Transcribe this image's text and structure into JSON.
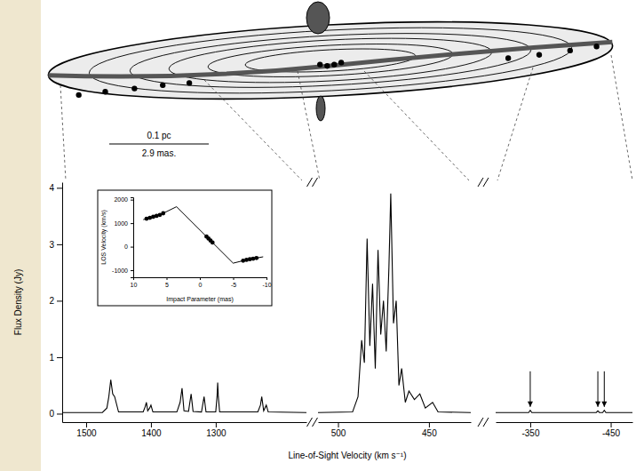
{
  "chart_data": [
    {
      "type": "line",
      "x_label": "Line-of-Sight Velocity (km s⁻¹)",
      "y_label": "Flux Density (Jy)",
      "ylim": [
        -0.15,
        4.1
      ],
      "yticks": [
        0,
        1,
        2,
        3,
        4
      ],
      "color": "#000000",
      "panels": [
        {
          "xlim": [
            1537,
            1160
          ],
          "xticks": [
            1500,
            1400,
            1300
          ],
          "x": [
            1537,
            1475,
            1468,
            1465,
            1462,
            1459,
            1456,
            1450,
            1412,
            1409,
            1407,
            1405,
            1402,
            1400,
            1397,
            1360,
            1355,
            1352,
            1349,
            1342,
            1338,
            1335,
            1322,
            1318,
            1315,
            1300,
            1298,
            1297,
            1296,
            1294,
            1235,
            1231,
            1229,
            1226,
            1222,
            1219,
            1160
          ],
          "values": [
            0.02,
            0.02,
            0.1,
            0.3,
            0.6,
            0.35,
            0.3,
            0.03,
            0.03,
            0.12,
            0.2,
            0.05,
            0.1,
            0.15,
            0.03,
            0.03,
            0.2,
            0.45,
            0.05,
            0.04,
            0.35,
            0.04,
            0.03,
            0.3,
            0.03,
            0.03,
            0.3,
            0.55,
            0.3,
            0.03,
            0.03,
            0.15,
            0.3,
            0.05,
            0.15,
            0.03,
            0.02
          ]
        },
        {
          "xlim": [
            511,
            427
          ],
          "xticks": [
            500,
            450
          ],
          "x": [
            511,
            492,
            489,
            487,
            485.5,
            484,
            482.5,
            481,
            479.5,
            478,
            476.5,
            475,
            473.5,
            472,
            471,
            469.5,
            468,
            466.5,
            465,
            463,
            461,
            458,
            455,
            452,
            448,
            445,
            427
          ],
          "values": [
            0.02,
            0.03,
            0.3,
            1.3,
            0.9,
            3.1,
            1.2,
            2.3,
            0.8,
            2.9,
            1.4,
            2.0,
            1.1,
            2.6,
            3.9,
            1.6,
            2.0,
            0.5,
            0.8,
            0.2,
            0.4,
            0.25,
            0.35,
            0.1,
            0.2,
            0.03,
            0.02
          ]
        },
        {
          "xlim": [
            -307,
            -477
          ],
          "xticks": [
            -350,
            -450
          ],
          "x": [
            -307,
            -348,
            -350,
            -352,
            -432,
            -434,
            -436,
            -440,
            -442,
            -444,
            -477
          ],
          "values": [
            0.02,
            0.02,
            0.06,
            0.02,
            0.02,
            0.05,
            0.02,
            0.02,
            0.06,
            0.02,
            0.02
          ],
          "arrows": [
            -350,
            -434,
            -442
          ]
        }
      ]
    },
    {
      "type": "line",
      "x_label": "Impact Parameter (mas)",
      "y_label": "LOS Velocity (km/s)",
      "xlim": [
        10,
        -10
      ],
      "xticks": [
        10,
        5,
        0,
        -5,
        -10
      ],
      "ylim": [
        -1300,
        2100
      ],
      "yticks": [
        2000,
        1000,
        0,
        -1000
      ],
      "color": "#000000",
      "series": [
        {
          "type": "line",
          "x": [
            8.5,
            6,
            3.5,
            -5,
            -7,
            -9.5
          ],
          "values": [
            1150,
            1350,
            1700,
            -700,
            -560,
            -430
          ]
        },
        {
          "type": "scatter",
          "marker": "circle",
          "x": [
            8,
            7.5,
            7,
            6.5,
            6,
            5.5,
            -1.0,
            -1.3,
            -1.6,
            -1.9,
            -6.5,
            -7,
            -7.5,
            -8,
            -8.5
          ],
          "values": [
            1190,
            1230,
            1270,
            1310,
            1350,
            1420,
            431,
            346,
            262,
            177,
            -595,
            -560,
            -534,
            -508,
            -482
          ]
        }
      ]
    }
  ],
  "diagram": {
    "scale_pc": "0.1 pc",
    "scale_mas": "2.9 mas."
  }
}
